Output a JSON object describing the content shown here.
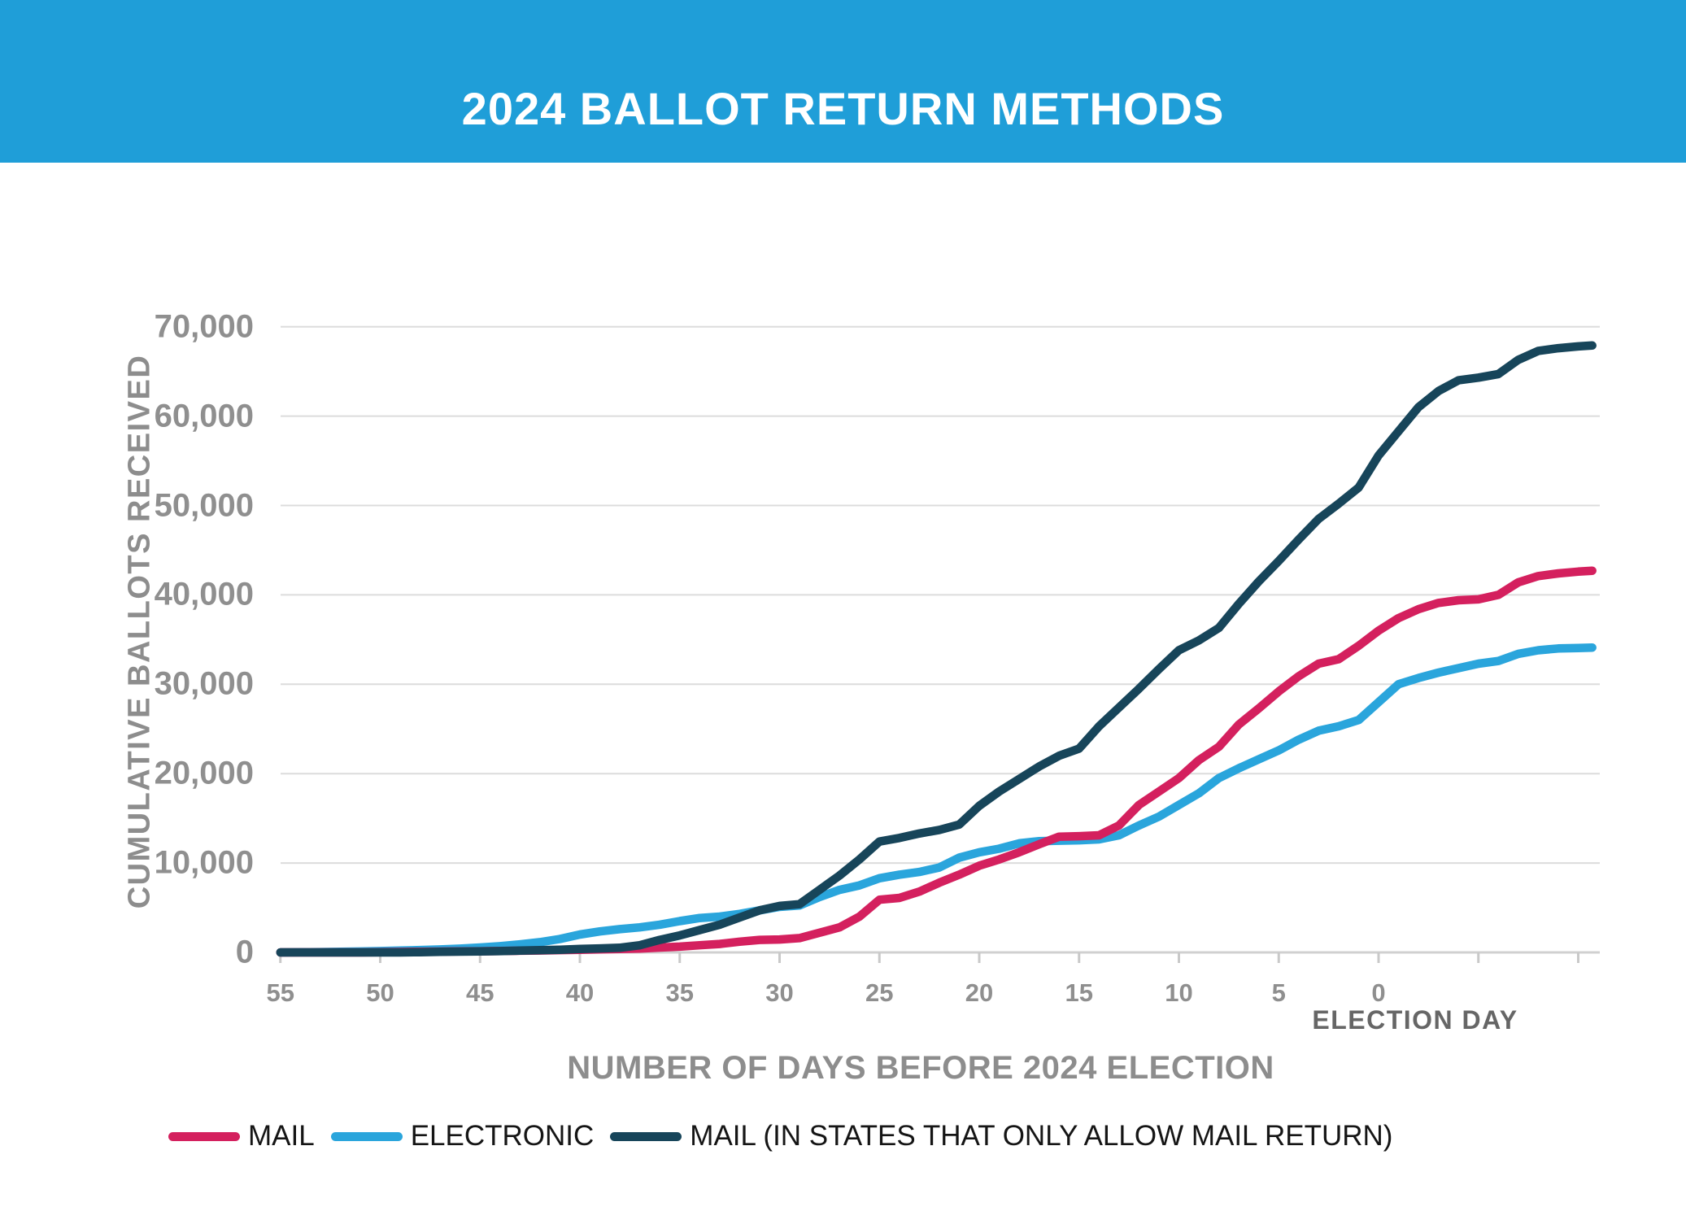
{
  "header": {
    "title": "2024 BALLOT RETURN METHODS",
    "bg_color": "#1f9ed8",
    "text_color": "#ffffff"
  },
  "y_axis": {
    "title": "CUMULATIVE BALLOTS RECEIVED",
    "tick_values": [
      0,
      10000,
      20000,
      30000,
      40000,
      50000,
      60000,
      70000
    ],
    "tick_labels": [
      "0",
      "10,000",
      "20,000",
      "30,000",
      "40,000",
      "50,000",
      "60,000",
      "70,000"
    ]
  },
  "x_axis": {
    "title": "NUMBER OF DAYS BEFORE 2024 ELECTION",
    "election_day_label": "ELECTION DAY",
    "labeled_tick_values": [
      55,
      50,
      45,
      40,
      35,
      30,
      25,
      20,
      15,
      10,
      5,
      0
    ],
    "all_tick_values": [
      55,
      50,
      45,
      40,
      35,
      30,
      25,
      20,
      15,
      10,
      5,
      0,
      -5,
      -10
    ]
  },
  "legend": {
    "position": "bottom-left",
    "items": [
      {
        "label": "MAIL",
        "color": "#d4205e"
      },
      {
        "label": "ELECTRONIC",
        "color": "#2aa5dc"
      },
      {
        "label": "MAIL (IN STATES THAT ONLY ALLOW MAIL RETURN)",
        "color": "#17455a"
      }
    ]
  },
  "colors": {
    "header_bg": "#1f9ed8",
    "mail_line": "#d4205e",
    "electronic_line": "#2aa5dc",
    "mail_only_line": "#17455a",
    "gridline": "#dcdcdc",
    "axis_line": "#d0d0d0",
    "tick_mark": "#c9c9c9",
    "tick_label_text": "#8f8f8f",
    "axis_title_text": "#8d8d8d",
    "election_day_text": "#666666",
    "legend_text": "#151515"
  },
  "chart_data": {
    "type": "line",
    "title": "2024 BALLOT RETURN METHODS",
    "xlabel": "NUMBER OF DAYS BEFORE 2024 ELECTION",
    "ylabel": "CUMULATIVE BALLOTS RECEIVED",
    "x_axis_note": "x axis counts days before the 2024 election; 0 = Election Day, line continues ~10 days after",
    "ylim": [
      0,
      70000
    ],
    "x_ticks": [
      55,
      50,
      45,
      40,
      35,
      30,
      25,
      20,
      15,
      10,
      5,
      0
    ],
    "grid": "horizontal",
    "legend_position": "bottom",
    "x": [
      55,
      54,
      53,
      52,
      51,
      50,
      49,
      48,
      47,
      46,
      45,
      44,
      43,
      42,
      41,
      40,
      39,
      38,
      37,
      36,
      35,
      34,
      33,
      32,
      31,
      30,
      29,
      28,
      27,
      26,
      25,
      24,
      23,
      22,
      21,
      20,
      19,
      18,
      17,
      16,
      15,
      14,
      13,
      12,
      11,
      10,
      9,
      8,
      7,
      6,
      5,
      4,
      3,
      2,
      1,
      0,
      -1,
      -2,
      -3,
      -4,
      -5,
      -6,
      -7,
      -8,
      -9,
      -10,
      -10.7
    ],
    "series": [
      {
        "name": "MAIL",
        "color": "#d4205e",
        "values": [
          0,
          0,
          0,
          0,
          0,
          30,
          50,
          70,
          90,
          110,
          130,
          160,
          190,
          220,
          260,
          300,
          340,
          380,
          430,
          550,
          650,
          800,
          950,
          1200,
          1400,
          1450,
          1600,
          2200,
          2800,
          4000,
          5900,
          6100,
          6800,
          7800,
          8700,
          9700,
          10400,
          11200,
          12100,
          12950,
          13000,
          13100,
          14200,
          16500,
          18000,
          19500,
          21500,
          23000,
          25500,
          27300,
          29200,
          30900,
          32300,
          32800,
          34300,
          36000,
          37400,
          38400,
          39100,
          39400,
          39500,
          40000,
          41400,
          42100,
          42400,
          42600,
          42700
        ]
      },
      {
        "name": "ELECTRONIC",
        "color": "#2aa5dc",
        "values": [
          0,
          20,
          40,
          70,
          100,
          150,
          200,
          260,
          330,
          420,
          550,
          700,
          900,
          1150,
          1500,
          2000,
          2350,
          2600,
          2800,
          3100,
          3500,
          3850,
          4000,
          4300,
          4700,
          5100,
          5250,
          6200,
          7000,
          7500,
          8300,
          8700,
          9000,
          9500,
          10600,
          11200,
          11600,
          12200,
          12450,
          12500,
          12550,
          12650,
          13100,
          14200,
          15200,
          16500,
          17800,
          19500,
          20600,
          21600,
          22600,
          23800,
          24800,
          25300,
          26000,
          28000,
          30000,
          30700,
          31300,
          31800,
          32300,
          32600,
          33400,
          33800,
          34000,
          34050,
          34100
        ]
      },
      {
        "name": "MAIL (IN STATES THAT ONLY ALLOW MAIL RETURN)",
        "color": "#17455a",
        "values": [
          0,
          0,
          0,
          0,
          0,
          0,
          0,
          30,
          60,
          90,
          120,
          150,
          200,
          250,
          300,
          390,
          450,
          520,
          800,
          1400,
          1900,
          2500,
          3100,
          3900,
          4700,
          5200,
          5400,
          7000,
          8600,
          10400,
          12400,
          12800,
          13300,
          13700,
          14300,
          16400,
          18000,
          19400,
          20800,
          22000,
          22800,
          25300,
          27400,
          29500,
          31700,
          33800,
          34900,
          36300,
          39000,
          41500,
          43800,
          46200,
          48500,
          50200,
          52000,
          55600,
          58300,
          61000,
          62800,
          64000,
          64300,
          64700,
          66300,
          67300,
          67600,
          67800,
          67900
        ]
      }
    ]
  }
}
